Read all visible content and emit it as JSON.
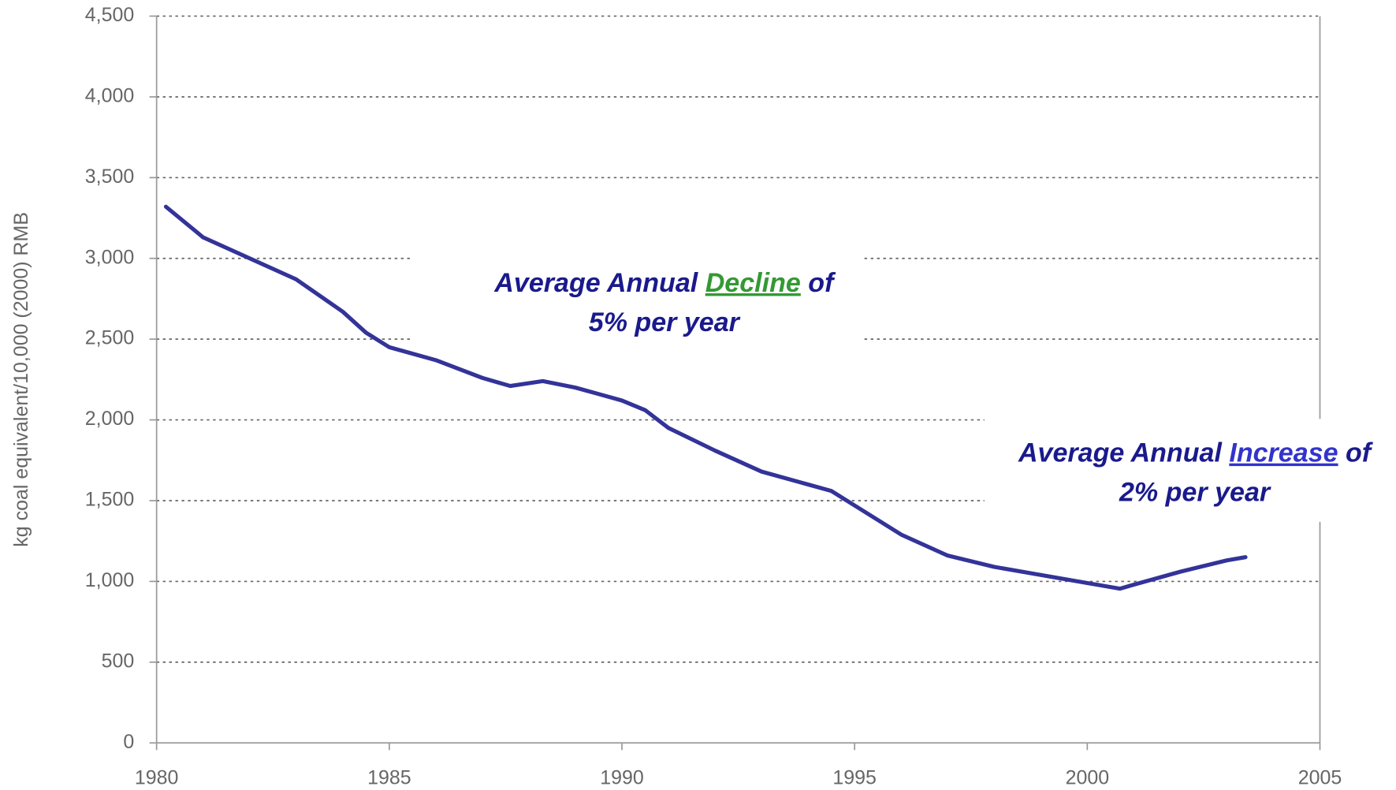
{
  "chart_data": {
    "type": "line",
    "y_label": "kg coal equivalent/10,000 (2000) RMB",
    "x": [
      1980.2,
      1981,
      1982,
      1983,
      1984,
      1984.5,
      1985,
      1986,
      1987,
      1987.6,
      1988.3,
      1989,
      1990,
      1990.5,
      1991,
      1992,
      1993,
      1994,
      1994.5,
      1995,
      1996,
      1997,
      1998,
      1999,
      2000,
      2000.7,
      2001,
      2002,
      2003,
      2003.4
    ],
    "values": [
      3320,
      3130,
      3000,
      2870,
      2670,
      2540,
      2450,
      2370,
      2260,
      2210,
      2240,
      2200,
      2120,
      2060,
      1950,
      1810,
      1680,
      1600,
      1560,
      1470,
      1290,
      1160,
      1090,
      1040,
      990,
      955,
      980,
      1060,
      1130,
      1150
    ],
    "color": "#333399",
    "xlim": [
      1980,
      2005
    ],
    "xticks": [
      1980,
      1985,
      1990,
      1995,
      2000,
      2005
    ],
    "ylim": [
      0,
      4500
    ],
    "yticks": [
      0,
      500,
      {
        "value": 1000,
        "label": "1,000"
      },
      {
        "value": 1500,
        "label": "1,500"
      },
      {
        "value": 2000,
        "label": "2,000"
      },
      {
        "value": 2500,
        "label": "2,500"
      },
      {
        "value": 3000,
        "label": "3,000"
      },
      {
        "value": 3500,
        "label": "3,500"
      },
      {
        "value": 4000,
        "label": "4,000"
      },
      {
        "value": 4500,
        "label": "4,500"
      }
    ],
    "grid": true,
    "annotations": [
      {
        "before": "Average Annual ",
        "highlight": "Decline",
        "after": " of",
        "line2": "5% per year",
        "color": "#1a1a8c",
        "highlight_color": "#339933"
      },
      {
        "before": "Average Annual ",
        "highlight": "Increase",
        "after": " of",
        "line2": "2% per year",
        "color": "#1a1a8c",
        "highlight_color": "#3333cc"
      }
    ]
  }
}
